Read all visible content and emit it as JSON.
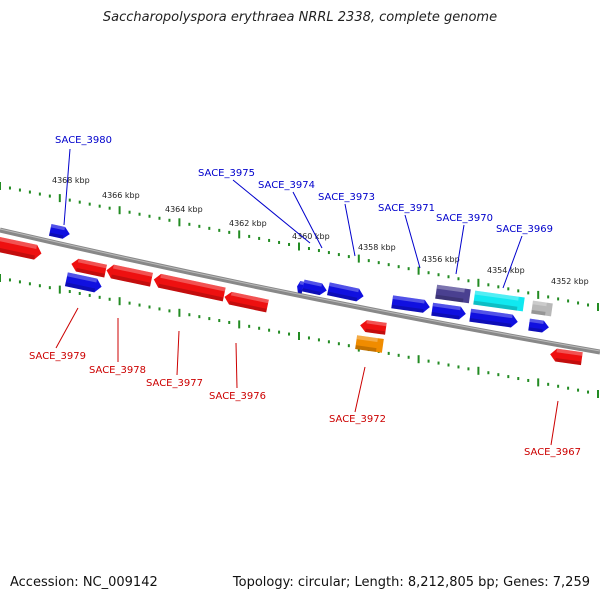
{
  "title": "Saccharopolyspora erythraea NRRL 2338, complete genome",
  "footer": {
    "accession": "Accession: NC_009142",
    "summary": "Topology: circular; Length: 8,212,805 bp; Genes: 7,259"
  },
  "colors": {
    "forward_label": "#0000cc",
    "reverse_label": "#cc0000",
    "kbp_label": "#222222",
    "tick": "#228b22",
    "backbone": "#888888",
    "gene_blue": "#1010e0",
    "gene_red": "#ee1010",
    "gene_orange": "#f08c00",
    "gene_cyan": "#10e8f0",
    "gene_purple": "#4a4090",
    "gene_gray": "#b8b8b8"
  },
  "kbp_labels": [
    "4368 kbp",
    "4366 kbp",
    "4364 kbp",
    "4362 kbp",
    "4360 kbp",
    "4358 kbp",
    "4356 kbp",
    "4354 kbp",
    "4352 kbp"
  ],
  "forward_genes": [
    "SACE_3980",
    "SACE_3975",
    "SACE_3974",
    "SACE_3973",
    "SACE_3971",
    "SACE_3970",
    "SACE_3969"
  ],
  "reverse_genes": [
    "SACE_3979",
    "SACE_3978",
    "SACE_3977",
    "SACE_3976",
    "SACE_3972",
    "SACE_3967"
  ]
}
